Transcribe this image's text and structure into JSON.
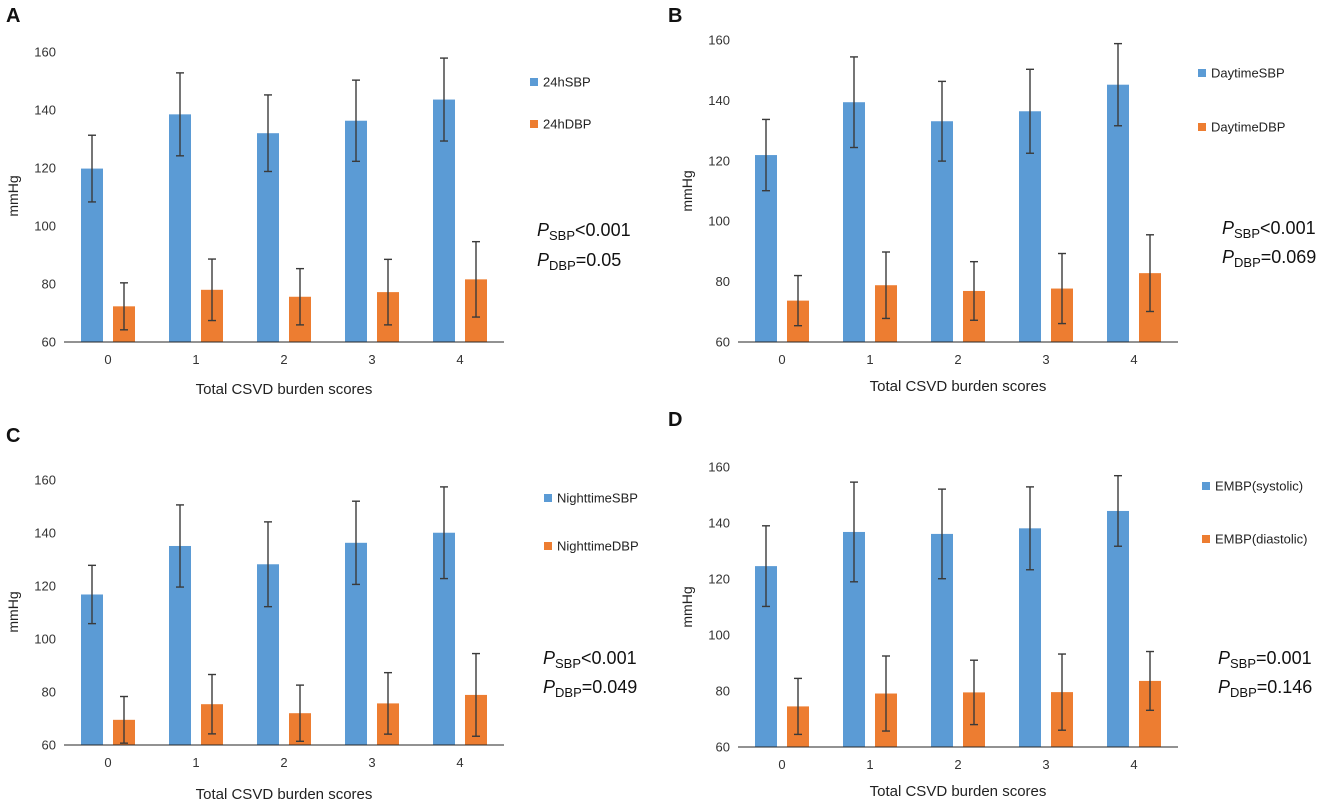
{
  "chart_data": [
    {
      "type": "bar",
      "panel_letter": "A",
      "categories": [
        "0",
        "1",
        "2",
        "3",
        "4"
      ],
      "xlabel": "Total CSVD burden scores",
      "ylabel": "mmHg",
      "ylim": [
        60,
        160
      ],
      "yticks": [
        "60",
        "80",
        "100",
        "120",
        "140",
        "160"
      ],
      "series": [
        {
          "name": "24hSBP",
          "color": "#5b9bd5",
          "values": [
            119.8,
            138.5,
            132,
            136.3,
            143.6
          ],
          "errors": [
            11.5,
            14.3,
            13.2,
            14,
            14.3
          ]
        },
        {
          "name": "24hDBP",
          "color": "#ed7d31",
          "values": [
            72.3,
            78,
            75.6,
            77.2,
            81.6
          ],
          "errors": [
            8.1,
            10.6,
            9.7,
            11.3,
            13
          ]
        }
      ],
      "annotation": [
        {
          "p": "P",
          "sub": "SBP",
          "rest": "<0.001"
        },
        {
          "p": "P",
          "sub": "DBP",
          "rest": "=0.05"
        }
      ]
    },
    {
      "type": "bar",
      "panel_letter": "B",
      "categories": [
        "0",
        "1",
        "2",
        "3",
        "4"
      ],
      "xlabel": "Total CSVD burden scores",
      "ylabel": "mmHg",
      "ylim": [
        60,
        160
      ],
      "yticks": [
        "60",
        "80",
        "100",
        "120",
        "140",
        "160"
      ],
      "series": [
        {
          "name": "DaytimeSBP",
          "color": "#5b9bd5",
          "values": [
            121.9,
            139.4,
            133.1,
            136.4,
            145.2
          ],
          "errors": [
            11.8,
            15,
            13.2,
            13.9,
            13.6
          ]
        },
        {
          "name": "DaytimeDBP",
          "color": "#ed7d31",
          "values": [
            73.7,
            78.8,
            76.9,
            77.7,
            82.8
          ],
          "errors": [
            8.3,
            11,
            9.7,
            11.6,
            12.7
          ]
        }
      ],
      "annotation": [
        {
          "p": "P",
          "sub": "SBP",
          "rest": "<0.001"
        },
        {
          "p": "P",
          "sub": "DBP",
          "rest": "=0.069"
        }
      ]
    },
    {
      "type": "bar",
      "panel_letter": "C",
      "categories": [
        "0",
        "1",
        "2",
        "3",
        "4"
      ],
      "xlabel": "Total CSVD burden scores",
      "ylabel": "mmHg",
      "ylim": [
        60,
        160
      ],
      "yticks": [
        "60",
        "80",
        "100",
        "120",
        "140",
        "160"
      ],
      "series": [
        {
          "name": "NighttimeSBP",
          "color": "#5b9bd5",
          "values": [
            116.8,
            135.1,
            128.2,
            136.3,
            140.1
          ],
          "errors": [
            11,
            15.5,
            16,
            15.7,
            17.3
          ]
        },
        {
          "name": "NighttimeDBP",
          "color": "#ed7d31",
          "values": [
            69.5,
            75.4,
            72,
            75.7,
            78.9
          ],
          "errors": [
            8.8,
            11.2,
            10.6,
            11.6,
            15.6
          ]
        }
      ],
      "annotation": [
        {
          "p": "P",
          "sub": "SBP",
          "rest": "<0.001"
        },
        {
          "p": "P",
          "sub": "DBP",
          "rest": "=0.049"
        }
      ]
    },
    {
      "type": "bar",
      "panel_letter": "D",
      "categories": [
        "0",
        "1",
        "2",
        "3",
        "4"
      ],
      "xlabel": "Total CSVD burden scores",
      "ylabel": "mmHg",
      "ylim": [
        60,
        160
      ],
      "yticks": [
        "60",
        "80",
        "100",
        "120",
        "140",
        "160"
      ],
      "series": [
        {
          "name": "EMBP(systolic)",
          "color": "#5b9bd5",
          "values": [
            124.6,
            136.8,
            136.1,
            138.1,
            144.3
          ],
          "errors": [
            14.4,
            17.8,
            16,
            14.8,
            12.6
          ]
        },
        {
          "name": "EMBP(diastolic)",
          "color": "#ed7d31",
          "values": [
            74.5,
            79.1,
            79.5,
            79.6,
            83.6
          ],
          "errors": [
            10,
            13.4,
            11.5,
            13.6,
            10.5
          ]
        }
      ],
      "annotation": [
        {
          "p": "P",
          "sub": "SBP",
          "rest": "=0.001"
        },
        {
          "p": "P",
          "sub": "DBP",
          "rest": "=0.146"
        }
      ]
    }
  ]
}
